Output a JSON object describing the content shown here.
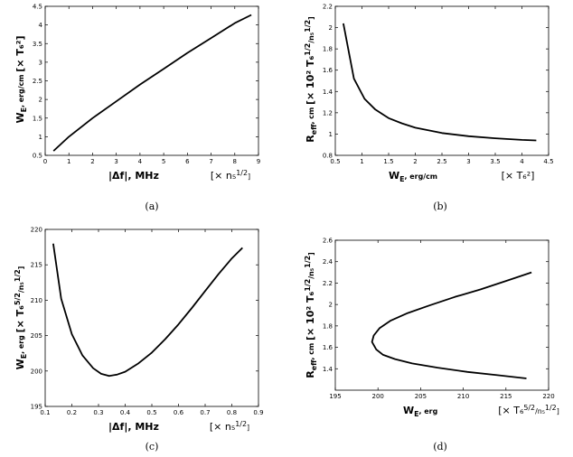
{
  "chart_data": [
    {
      "type": "line",
      "caption": "(a)",
      "xlabel": "|Δf|, MHz",
      "xunit": "[× n₅^{1/2}]",
      "ylabel": "W_E, erg/cm",
      "yunit": "[× T₆²]",
      "xlim": [
        0,
        9
      ],
      "ylim": [
        0.5,
        4.5
      ],
      "xticks": [
        "0",
        "1",
        "2",
        "3",
        "4",
        "5",
        "6",
        "7",
        "8",
        "9"
      ],
      "yticks": [
        "0.5",
        "1",
        "1.5",
        "2",
        "2.5",
        "3",
        "3.5",
        "4",
        "4.5"
      ],
      "series": [
        {
          "x": [
            0.35,
            1.0,
            2.0,
            3.0,
            4.0,
            5.0,
            6.0,
            7.0,
            8.0,
            8.7
          ],
          "y": [
            0.62,
            1.0,
            1.5,
            1.95,
            2.4,
            2.82,
            3.25,
            3.65,
            4.05,
            4.27
          ]
        }
      ]
    },
    {
      "type": "line",
      "caption": "(b)",
      "xlabel": "W_E, erg/cm",
      "xunit": "[× T₆²]",
      "ylabel": "R_eff, cm",
      "yunit": "[× 10² T₆^{1/2}/n₅^{1/2}]",
      "xlim": [
        0.5,
        4.5
      ],
      "ylim": [
        0.8,
        2.2
      ],
      "xticks": [
        "0.5",
        "1",
        "1.5",
        "2",
        "2.5",
        "3",
        "3.5",
        "4",
        "4.5"
      ],
      "yticks": [
        "0.8",
        "1",
        "1.2",
        "1.4",
        "1.6",
        "1.8",
        "2",
        "2.2"
      ],
      "series": [
        {
          "x": [
            0.65,
            0.85,
            1.05,
            1.25,
            1.5,
            1.75,
            2.0,
            2.5,
            3.0,
            3.5,
            4.0,
            4.27
          ],
          "y": [
            2.04,
            1.52,
            1.33,
            1.23,
            1.15,
            1.1,
            1.06,
            1.01,
            0.98,
            0.96,
            0.945,
            0.94
          ]
        }
      ]
    },
    {
      "type": "line",
      "caption": "(c)",
      "xlabel": "|Δf|, MHz",
      "xunit": "[× n₅^{1/2}]",
      "ylabel": "W_E, erg",
      "yunit": "[× T₆^{5/2}/n₅^{1/2}]",
      "xlim": [
        0.1,
        0.9
      ],
      "ylim": [
        195,
        220
      ],
      "xticks": [
        "0.1",
        "0.2",
        "0.3",
        "0.4",
        "0.5",
        "0.6",
        "0.7",
        "0.8",
        "0.9"
      ],
      "yticks": [
        "195",
        "200",
        "205",
        "210",
        "215",
        "220"
      ],
      "series": [
        {
          "x": [
            0.13,
            0.16,
            0.2,
            0.24,
            0.28,
            0.31,
            0.34,
            0.37,
            0.4,
            0.45,
            0.5,
            0.55,
            0.6,
            0.65,
            0.7,
            0.75,
            0.8,
            0.84
          ],
          "y": [
            218.0,
            210.2,
            205.2,
            202.2,
            200.4,
            199.6,
            199.3,
            199.5,
            199.9,
            201.1,
            202.6,
            204.5,
            206.6,
            208.9,
            211.3,
            213.7,
            215.9,
            217.4
          ]
        }
      ]
    },
    {
      "type": "line",
      "caption": "(d)",
      "xlabel": "W_E, erg",
      "xunit": "[× T₆^{5/2}/n₅^{1/2}]",
      "ylabel": "R_eff, cm",
      "yunit": "[× 10² T₆^{1/2}/n₅^{1/2}]",
      "xlim": [
        195,
        220
      ],
      "ylim": [
        1.2,
        2.6
      ],
      "xticks": [
        "195",
        "200",
        "205",
        "210",
        "215",
        "220"
      ],
      "yticks": [
        "1.4",
        "1.6",
        "1.8",
        "2",
        "2.2",
        "2.4",
        "2.6"
      ],
      "series": [
        {
          "x": [
            217.4,
            214.0,
            210.5,
            207.0,
            204.0,
            202.0,
            200.6,
            199.8,
            199.3,
            199.5,
            200.2,
            201.5,
            203.5,
            206.0,
            209.0,
            212.0,
            215.0,
            218.0
          ],
          "y": [
            1.31,
            1.34,
            1.37,
            1.41,
            1.45,
            1.49,
            1.53,
            1.58,
            1.65,
            1.71,
            1.78,
            1.85,
            1.92,
            1.99,
            2.07,
            2.14,
            2.22,
            2.3
          ]
        }
      ]
    }
  ]
}
